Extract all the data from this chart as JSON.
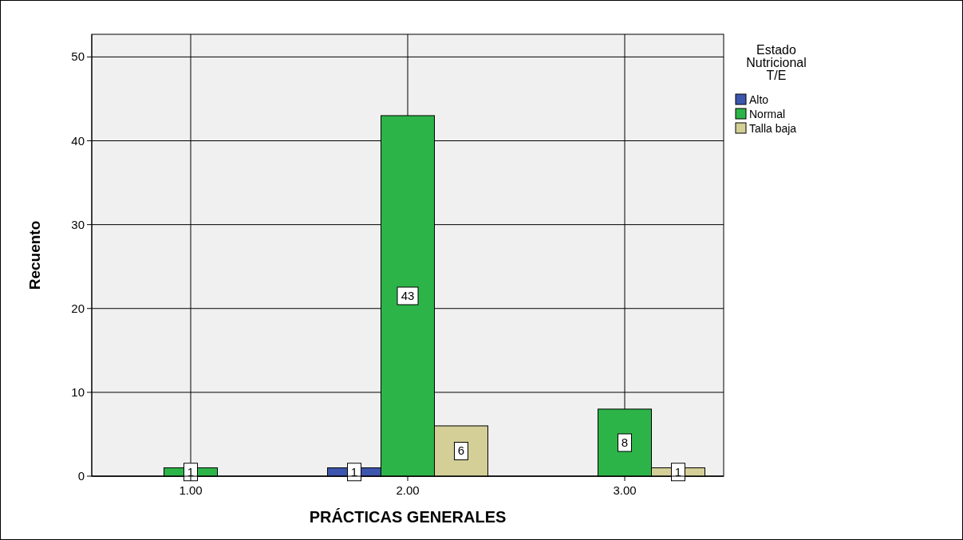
{
  "chart_data": {
    "type": "bar",
    "xlabel": "PRÁCTICAS GENERALES",
    "ylabel": "Recuento",
    "legend_title": "Estado Nutricional T/E",
    "categories": [
      "1.00",
      "2.00",
      "3.00"
    ],
    "series": [
      {
        "name": "Alto",
        "color": "#3c56ad",
        "values": [
          null,
          1,
          null
        ]
      },
      {
        "name": "Normal",
        "color": "#2db449",
        "values": [
          1,
          43,
          8
        ]
      },
      {
        "name": "Talla baja",
        "color": "#d4cf97",
        "values": [
          null,
          6,
          1
        ]
      }
    ],
    "ylim": [
      0,
      52.7
    ],
    "yticks": [
      0,
      10,
      20,
      30,
      40,
      50
    ],
    "grid": true,
    "legend": "top right",
    "data_labels": true
  }
}
